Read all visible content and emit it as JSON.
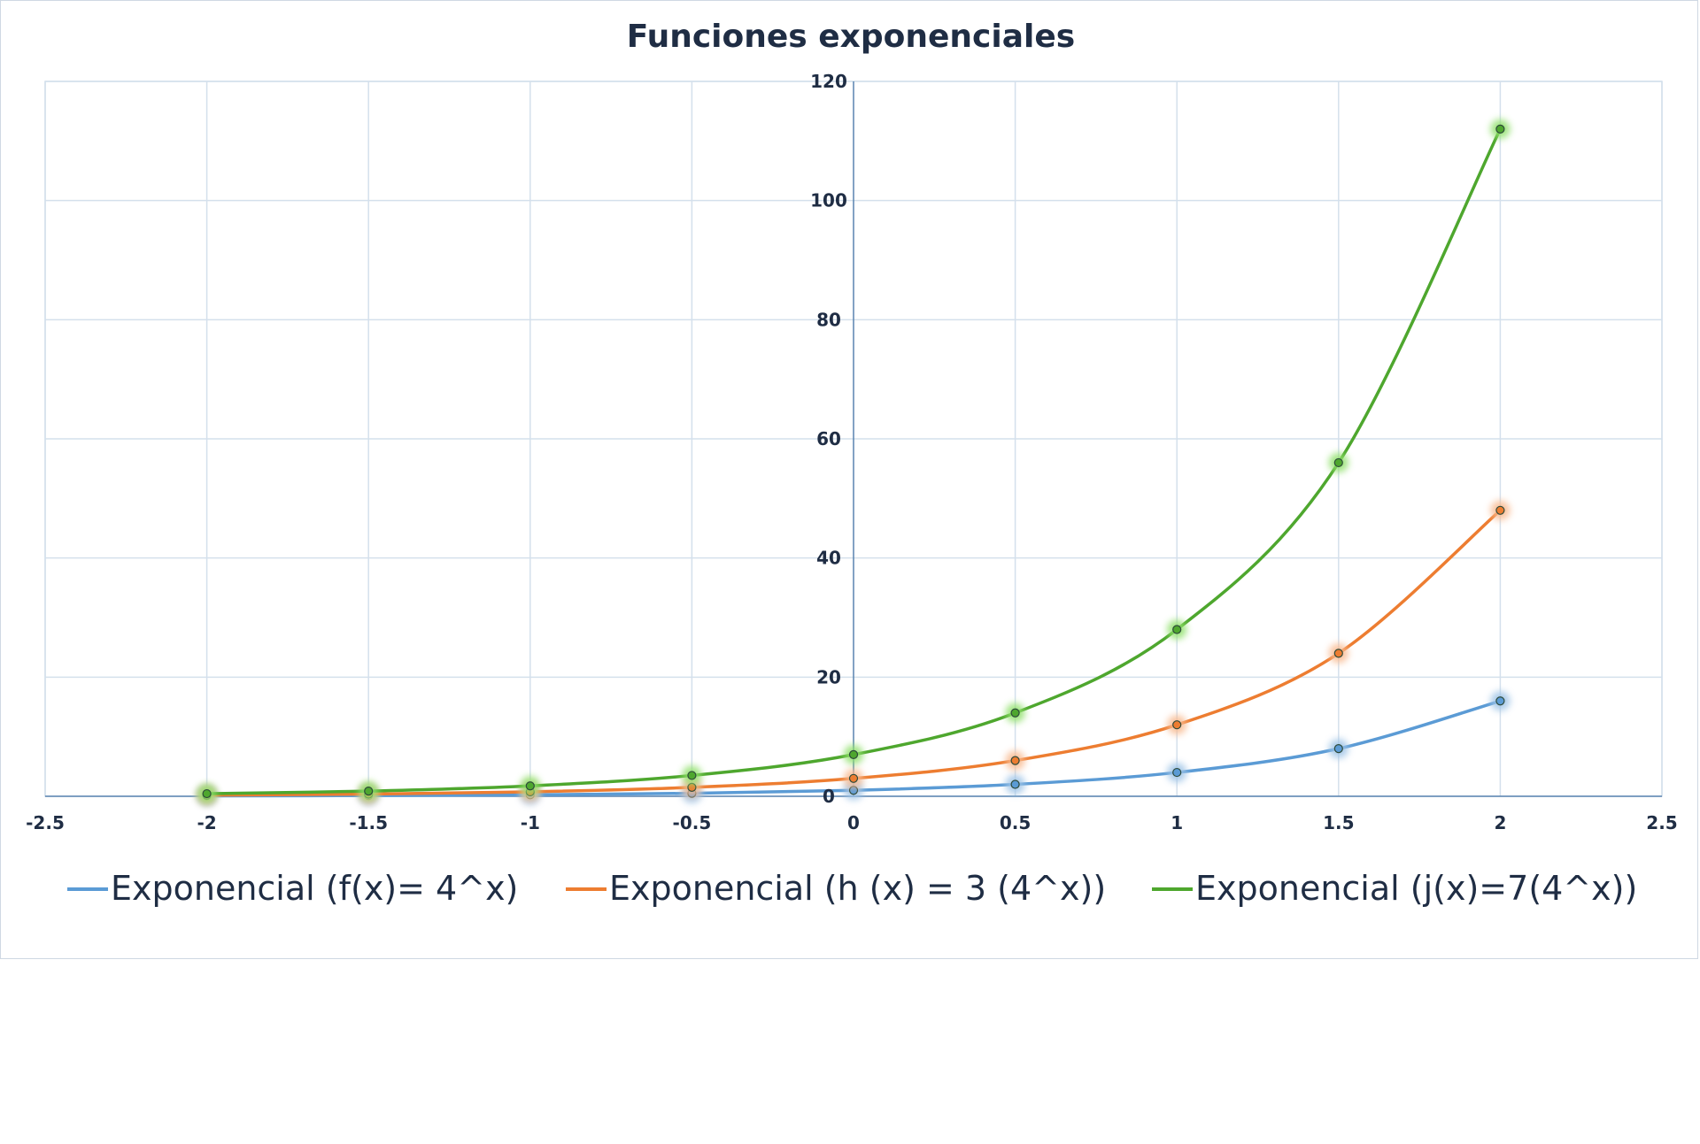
{
  "chart_data": {
    "type": "scatter",
    "title": "Funciones exponenciales",
    "xlabel": "",
    "ylabel": "",
    "xlim": [
      -2.5,
      2.5
    ],
    "ylim": [
      0,
      120
    ],
    "x_ticks": [
      "-2.5",
      "-2",
      "-1.5",
      "-1",
      "-0.5",
      "0",
      "0.5",
      "1",
      "1.5",
      "2",
      "2.5"
    ],
    "y_ticks": [
      "0",
      "20",
      "40",
      "60",
      "80",
      "100",
      "120"
    ],
    "grid": true,
    "legend_position": "bottom",
    "x": [
      -2,
      -1.5,
      -1,
      -0.5,
      0,
      0.5,
      1,
      1.5,
      2
    ],
    "series": [
      {
        "name": "Exponencial (f(x)= 4^x)",
        "color": "#5b9bd5",
        "glow": "#9dc3e6",
        "values": [
          0.0625,
          0.125,
          0.25,
          0.5,
          1,
          2,
          4,
          8,
          16
        ]
      },
      {
        "name": "Exponencial (h (x) = 3 (4^x))",
        "color": "#ed7d31",
        "glow": "#f8b98f",
        "values": [
          0.1875,
          0.375,
          0.75,
          1.5,
          3,
          6,
          12,
          24,
          48
        ]
      },
      {
        "name": "Exponencial (j(x)=7(4^x))",
        "color": "#4ea72e",
        "glow": "#8fe06a",
        "values": [
          0.4375,
          0.875,
          1.75,
          3.5,
          7,
          14,
          28,
          56,
          112
        ]
      }
    ]
  }
}
